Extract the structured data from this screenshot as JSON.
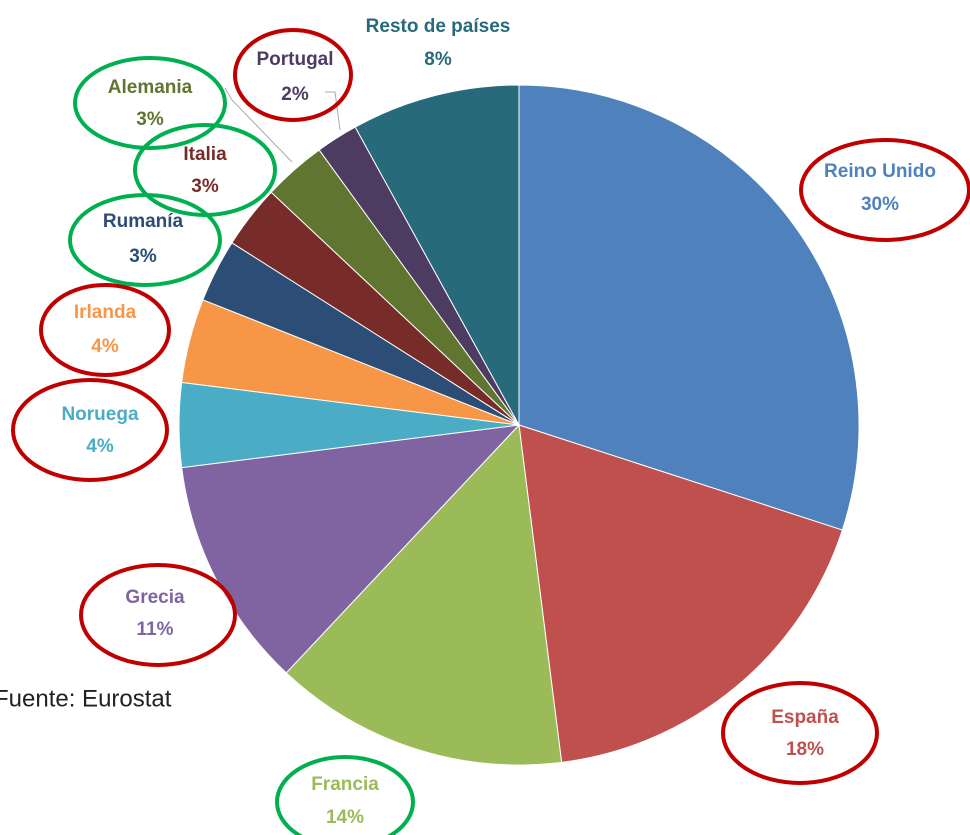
{
  "chart_data": {
    "type": "pie",
    "categories": [
      "Reino Unido",
      "España",
      "Francia",
      "Grecia",
      "Noruega",
      "Irlanda",
      "Rumanía",
      "Italia",
      "Alemania",
      "Portugal",
      "Resto de países"
    ],
    "values": [
      30,
      18,
      14,
      11,
      4,
      4,
      3,
      3,
      3,
      2,
      8
    ],
    "value_labels": [
      "30%",
      "18%",
      "14%",
      "11%",
      "4%",
      "4%",
      "3%",
      "3%",
      "3%",
      "2%",
      "8%"
    ],
    "colors": [
      "#4f81bd",
      "#c0504d",
      "#9bbb59",
      "#8064a2",
      "#4bacc6",
      "#f79646",
      "#2c4d75",
      "#772c2a",
      "#5f7530",
      "#4d3b62",
      "#276a7c"
    ],
    "source": "Fuente: Eurostat"
  }
}
